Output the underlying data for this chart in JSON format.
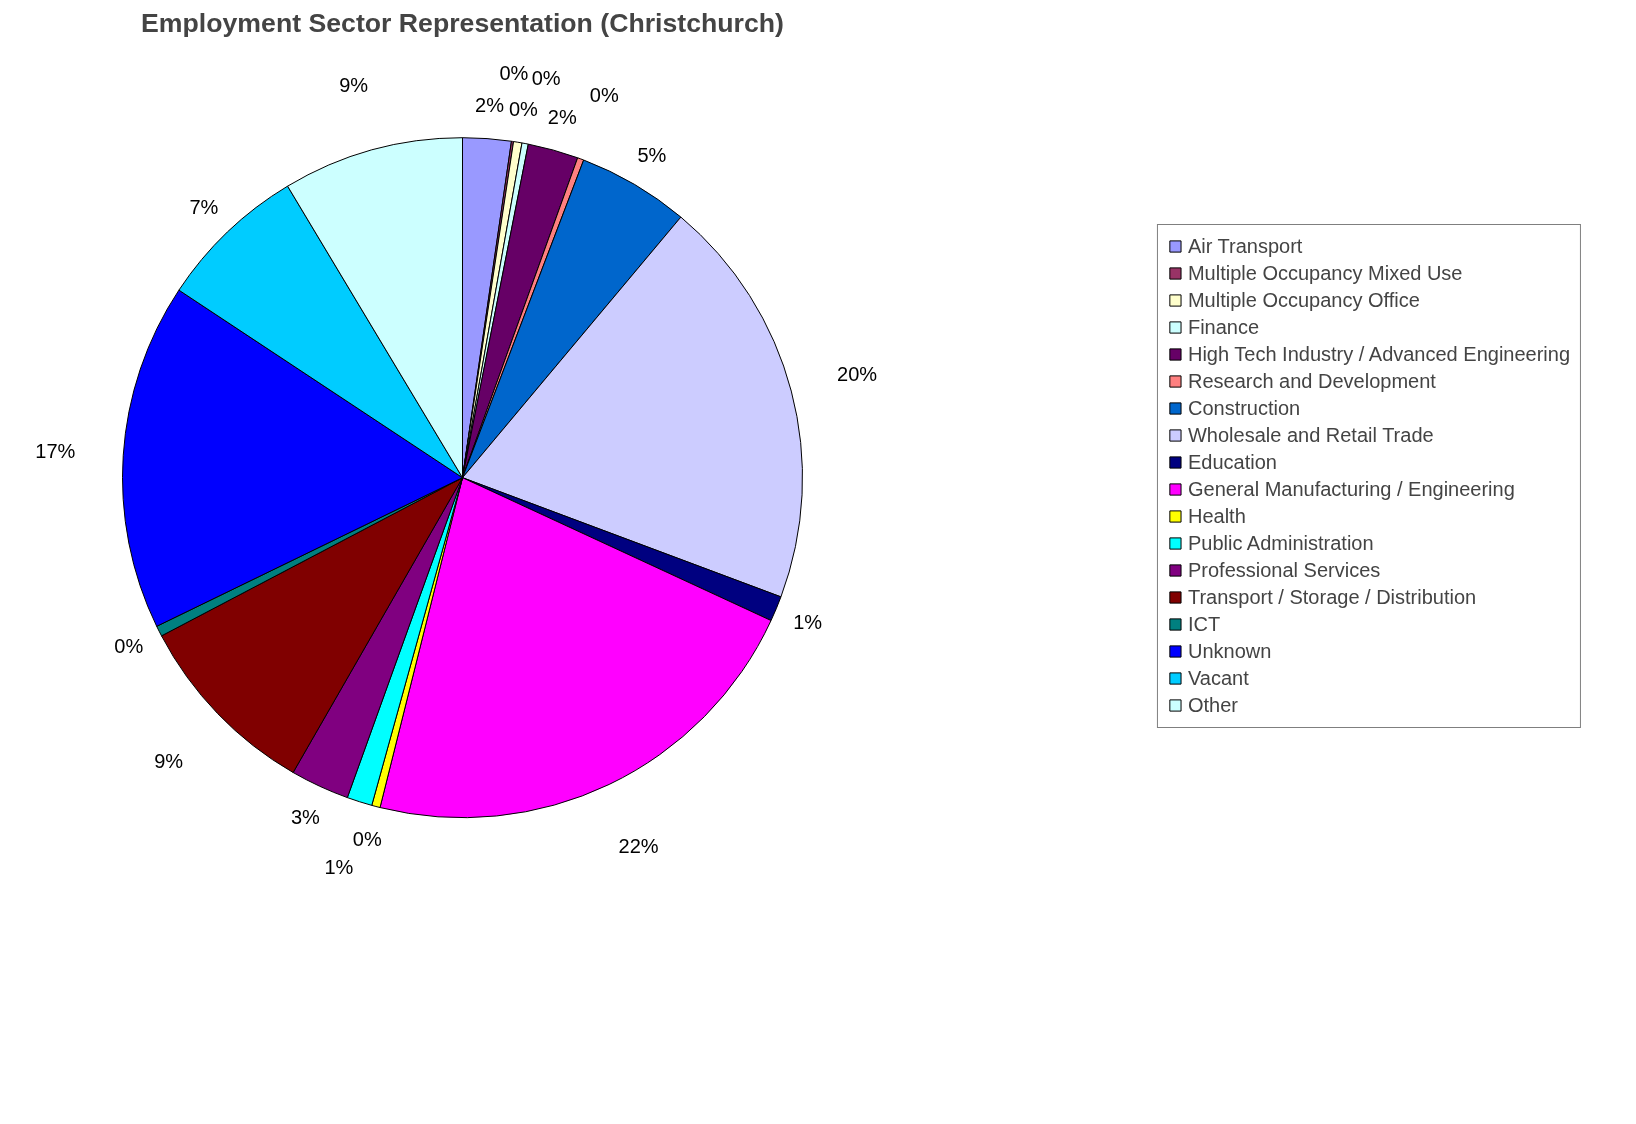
{
  "chart_data": {
    "type": "pie",
    "title": "Employment Sector Representation (Christchurch)",
    "categories": [
      "Air Transport",
      "Multiple Occupancy Mixed Use",
      "Multiple Occupancy Office",
      "Finance",
      "High Tech Industry / Advanced Engineering",
      "Research and Development",
      "Construction",
      "Wholesale and Retail Trade",
      "Education",
      "General Manufacturing / Engineering",
      "Health",
      "Public Administration",
      "Professional Services",
      "Transport / Storage / Distribution",
      "ICT",
      "Unknown",
      "Vacant",
      "Other"
    ],
    "values": [
      2.3,
      0.1,
      0.4,
      0.3,
      2.4,
      0.3,
      5.3,
      19.6,
      1.2,
      22.0,
      0.4,
      1.2,
      2.8,
      9.0,
      0.5,
      16.5,
      7.1,
      8.6
    ],
    "value_labels": [
      "2%",
      "0%",
      "0%",
      "0%",
      "2%",
      "0%",
      "5%",
      "20%",
      "1%",
      "22%",
      "0%",
      "1%",
      "3%",
      "9%",
      "0%",
      "17%",
      "7%",
      "9%"
    ],
    "colors": [
      "#9999ff",
      "#993366",
      "#ffffcc",
      "#ccffff",
      "#660066",
      "#ff8080",
      "#0066cc",
      "#ccccff",
      "#000080",
      "#ff00ff",
      "#ffff00",
      "#00ffff",
      "#800080",
      "#800000",
      "#008080",
      "#0000ff",
      "#00ccff",
      "#ccffff"
    ],
    "legend": "right"
  }
}
